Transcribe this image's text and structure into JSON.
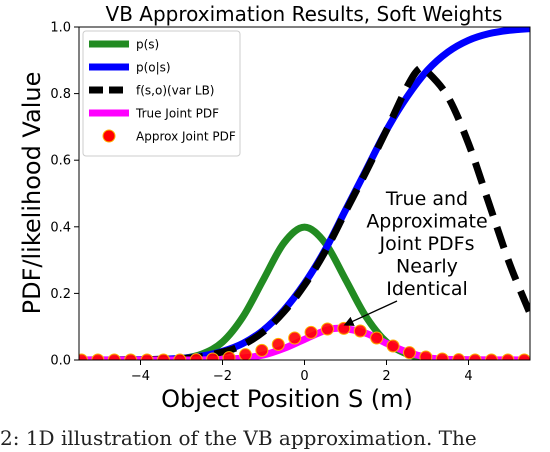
{
  "chart_data": {
    "type": "line",
    "title": "VB Approximation Results, Soft Weights",
    "xlabel": "Object Position S (m)",
    "ylabel": "PDF/likelihood Value",
    "xlim": [
      -5.5,
      5.5
    ],
    "ylim": [
      0,
      1.0
    ],
    "xticks": [
      -4,
      -2,
      0,
      2,
      4
    ],
    "yticks": [
      0.0,
      0.2,
      0.4,
      0.6,
      0.8,
      1.0
    ],
    "xtick_labels": [
      "−4",
      "−2",
      "0",
      "2",
      "4"
    ],
    "ytick_labels": [
      "0.0",
      "0.2",
      "0.4",
      "0.6",
      "0.8",
      "1.0"
    ],
    "grid": false,
    "legend_position": "top-left",
    "series": [
      {
        "name": "p(s)",
        "style": "solid",
        "color": "#228b22",
        "x": [
          -5.5,
          -4.5,
          -3.5,
          -3.0,
          -2.5,
          -2.0,
          -1.5,
          -1.0,
          -0.5,
          0.0,
          0.5,
          1.0,
          1.5,
          2.0,
          2.5,
          3.0,
          3.5,
          4.5,
          5.5
        ],
        "y": [
          0.0,
          0.0,
          0.001,
          0.004,
          0.018,
          0.054,
          0.13,
          0.242,
          0.352,
          0.399,
          0.352,
          0.242,
          0.13,
          0.054,
          0.018,
          0.004,
          0.001,
          0.0,
          0.0
        ]
      },
      {
        "name": "p(o|s)",
        "style": "solid",
        "color": "#0000ff",
        "x": [
          -5.5,
          -4.0,
          -3.0,
          -2.5,
          -2.0,
          -1.5,
          -1.0,
          -0.5,
          0.0,
          0.5,
          1.0,
          1.5,
          2.0,
          2.5,
          3.0,
          3.5,
          4.0,
          4.5,
          5.0,
          5.5
        ],
        "y": [
          0.0,
          0.001,
          0.005,
          0.012,
          0.026,
          0.05,
          0.09,
          0.15,
          0.23,
          0.33,
          0.45,
          0.57,
          0.69,
          0.79,
          0.87,
          0.925,
          0.96,
          0.98,
          0.99,
          0.995
        ]
      },
      {
        "name": "f(s,o)(var LB)",
        "style": "dashed",
        "color": "#000000",
        "x": [
          -5.5,
          -3.0,
          -2.0,
          -1.5,
          -1.0,
          -0.5,
          0.0,
          0.5,
          1.0,
          1.5,
          2.0,
          2.5,
          2.8,
          3.0,
          3.5,
          4.0,
          4.5,
          5.0,
          5.5
        ],
        "y": [
          0.0,
          0.004,
          0.024,
          0.046,
          0.085,
          0.145,
          0.225,
          0.325,
          0.445,
          0.565,
          0.69,
          0.82,
          0.875,
          0.865,
          0.79,
          0.65,
          0.47,
          0.29,
          0.14
        ]
      },
      {
        "name": "True Joint PDF",
        "style": "solid",
        "color": "#ff00ff",
        "x": [
          -5.5,
          -3.0,
          -2.0,
          -1.5,
          -1.0,
          -0.5,
          0.0,
          0.5,
          0.9,
          1.5,
          2.0,
          2.5,
          3.0,
          3.5,
          5.5
        ],
        "y": [
          0.0,
          0.0,
          0.002,
          0.006,
          0.015,
          0.035,
          0.062,
          0.088,
          0.095,
          0.08,
          0.05,
          0.024,
          0.008,
          0.002,
          0.0
        ]
      },
      {
        "name": "Approx Joint PDF",
        "style": "markers",
        "color": "#ff0000",
        "x": [
          -5.44,
          -5.04,
          -4.64,
          -4.24,
          -3.84,
          -3.44,
          -3.04,
          -2.64,
          -2.24,
          -1.84,
          -1.44,
          -1.04,
          -0.64,
          -0.24,
          0.16,
          0.56,
          0.96,
          1.36,
          1.76,
          2.16,
          2.56,
          2.96,
          3.36,
          3.76,
          4.16,
          4.56,
          4.96,
          5.36
        ],
        "y": [
          0.0,
          0.0,
          0.0,
          0.0,
          0.0,
          0.0,
          0.0,
          0.001,
          0.003,
          0.007,
          0.016,
          0.029,
          0.047,
          0.066,
          0.083,
          0.093,
          0.095,
          0.087,
          0.066,
          0.042,
          0.022,
          0.009,
          0.003,
          0.001,
          0.0,
          0.0,
          0.0,
          0.0
        ]
      }
    ],
    "annotations": [
      {
        "lines": [
          "True and",
          "Approximate",
          "Joint PDFs",
          "Nearly",
          "Identical"
        ],
        "arrow_to": [
          0.9,
          0.1
        ]
      }
    ]
  },
  "caption": "2: 1D illustration of the VB approximation. The"
}
